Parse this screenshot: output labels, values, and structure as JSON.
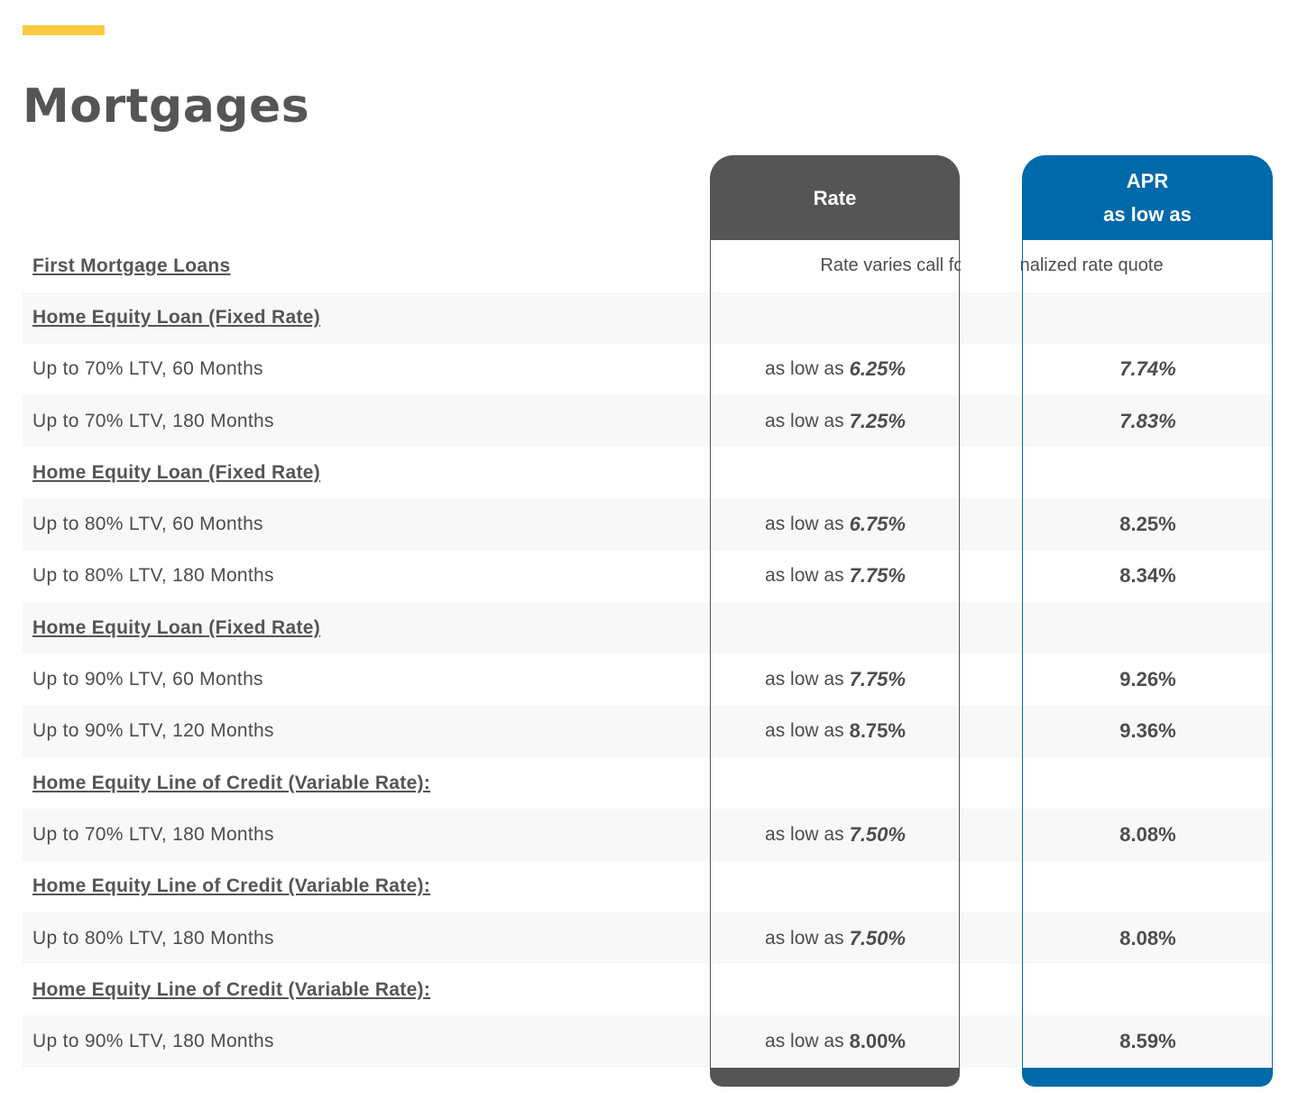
{
  "page": {
    "title": "Mortgages"
  },
  "columns": {
    "rate": {
      "label": "Rate"
    },
    "apr": {
      "line1": "APR",
      "line2": "as low as"
    }
  },
  "rows": [
    {
      "type": "heading",
      "label": "First Mortgage Loans",
      "note": "Rate varies call for personalized rate quote"
    },
    {
      "type": "heading",
      "label": "Home Equity Loan (Fixed Rate)"
    },
    {
      "type": "item",
      "label": "Up to 70% LTV, 60 Months",
      "prefix": "as low as",
      "rate": "6.25%",
      "apr": "7.74%"
    },
    {
      "type": "item",
      "label": "Up to 70% LTV, 180 Months",
      "prefix": "as low as",
      "rate": "7.25%",
      "apr": "7.83%"
    },
    {
      "type": "heading",
      "label": "Home Equity Loan (Fixed Rate)"
    },
    {
      "type": "item",
      "label": "Up to 80% LTV, 60 Months",
      "prefix": "as low as",
      "rate": "6.75%",
      "apr": "8.25%"
    },
    {
      "type": "item",
      "label": "Up to 80% LTV, 180 Months",
      "prefix": "as low as",
      "rate": "7.75%",
      "apr": "8.34%"
    },
    {
      "type": "heading",
      "label": "Home Equity Loan (Fixed Rate)"
    },
    {
      "type": "item",
      "label": "Up to 90% LTV, 60 Months",
      "prefix": "as low as",
      "rate": "7.75%",
      "apr": "9.26%"
    },
    {
      "type": "item",
      "label": "Up to 90% LTV, 120 Months",
      "prefix": "as low as",
      "rate": "8.75%",
      "apr": "9.36%"
    },
    {
      "type": "heading",
      "label": "Home Equity Line of Credit (Variable Rate):"
    },
    {
      "type": "item",
      "label": "Up to 70% LTV, 180 Months",
      "prefix": "as low as",
      "rate": "7.50%",
      "apr": "8.08%"
    },
    {
      "type": "heading",
      "label": "Home Equity Line of Credit (Variable Rate):"
    },
    {
      "type": "item",
      "label": "Up to 80% LTV, 180 Months",
      "prefix": "as low as",
      "rate": "7.50%",
      "apr": "8.08%"
    },
    {
      "type": "heading",
      "label": "Home Equity Line of Credit (Variable Rate):"
    },
    {
      "type": "item",
      "label": "Up to 90% LTV, 180 Months",
      "prefix": "as low as",
      "rate": "8.00%",
      "apr": "8.59%"
    }
  ],
  "colors": {
    "accent": "#fcc93f",
    "rate_header": "#555555",
    "apr_header": "#0069aa"
  }
}
